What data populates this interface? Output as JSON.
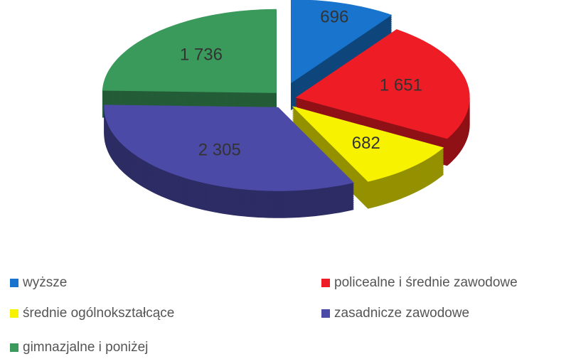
{
  "chart_data": {
    "type": "pie3d",
    "categories": [
      "wyższe",
      "policealne i średnie zawodowe",
      "średnie ogólnokształcące",
      "zasadnicze zawodowe",
      "gimnazjalne i poniżej"
    ],
    "values": [
      696,
      1651,
      682,
      2305,
      1736
    ],
    "value_labels": [
      "696",
      "1 651",
      "682",
      "2 305",
      "1 736"
    ],
    "colors": [
      "#1874cd",
      "#ee1c25",
      "#f7f200",
      "#4b4aa6",
      "#3a9a5c"
    ],
    "legend": "bottom"
  }
}
